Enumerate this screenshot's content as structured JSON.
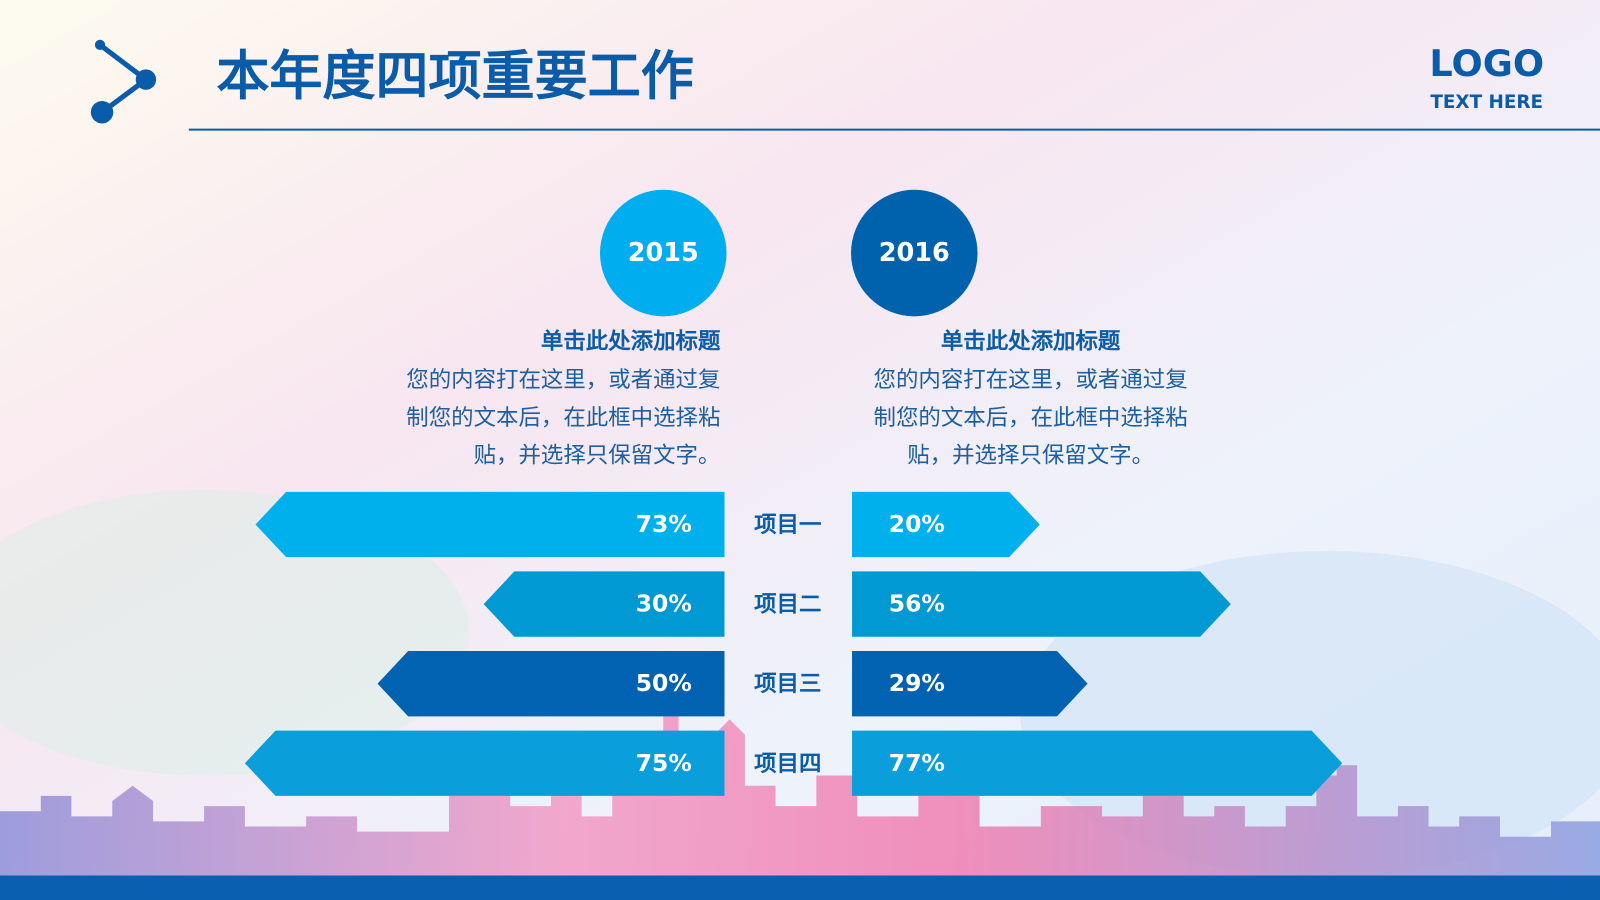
{
  "header": {
    "title": "本年度四项重要工作",
    "logo": "LOGO",
    "logo_sub": "TEXT HERE"
  },
  "chart_data": {
    "type": "butterfly",
    "categories": [
      "项目一",
      "项目二",
      "项目三",
      "项目四"
    ],
    "category_colors": [
      "#00b0ec",
      "#0099d3",
      "#0062b1",
      "#0a9fdb"
    ],
    "series": [
      {
        "name": "2015",
        "color": "#00aeef",
        "heading": "单击此处添加标题",
        "text": [
          "您的内容打在这里，或者通过复",
          "制您的文本后，在此框中选择粘",
          "贴，并选择只保留文字。"
        ],
        "values": [
          73,
          30,
          50,
          75
        ],
        "value_labels": [
          "73%",
          "30%",
          "50%",
          "75%"
        ]
      },
      {
        "name": "2016",
        "color": "#0062ad",
        "heading": "单击此处添加标题",
        "text": [
          "您的内容打在这里，或者通过复",
          "制您的文本后，在此框中选择粘",
          "贴，并选择只保留文字。"
        ],
        "values": [
          20,
          56,
          29,
          77
        ],
        "value_labels": [
          "20%",
          "56%",
          "29%",
          "77%"
        ]
      }
    ]
  }
}
